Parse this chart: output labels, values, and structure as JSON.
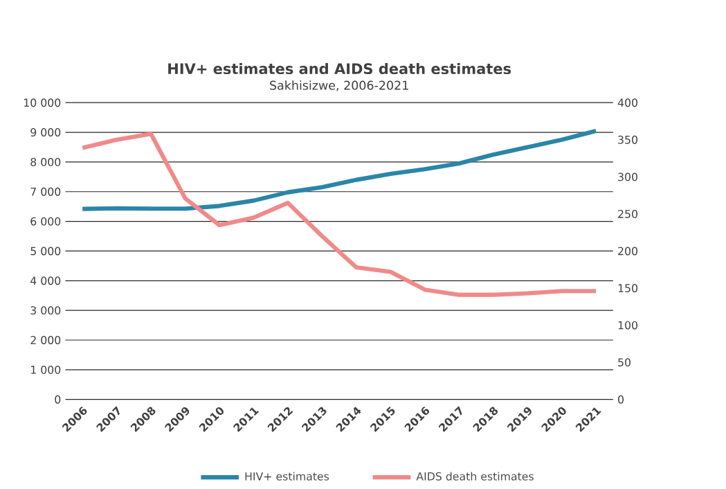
{
  "chart_data": {
    "type": "line",
    "title": "HIV+ estimates and AIDS death estimates",
    "subtitle": "Sakhisizwe, 2006-2021",
    "categories": [
      "2006",
      "2007",
      "2008",
      "2009",
      "2010",
      "2011",
      "2012",
      "2013",
      "2014",
      "2015",
      "2016",
      "2017",
      "2018",
      "2019",
      "2020",
      "2021"
    ],
    "series": [
      {
        "name": "HIV+ estimates",
        "color": "#2a86a8",
        "values": [
          6420,
          6440,
          6430,
          6430,
          6520,
          6700,
          6980,
          7150,
          7400,
          7600,
          7760,
          7950,
          8250,
          8500,
          8750,
          9050
        ]
      },
      {
        "name": "AIDS death estimates",
        "color": "#f08a8a",
        "axis": "y2",
        "values": [
          339,
          350,
          358,
          271,
          235,
          245,
          265,
          220,
          178,
          172,
          148,
          141,
          141,
          143,
          146,
          146
        ]
      }
    ],
    "ylim": [
      0,
      10000
    ],
    "yticks": [
      {
        "value": 0,
        "label": "0"
      },
      {
        "value": 1000,
        "label": "1 000"
      },
      {
        "value": 2000,
        "label": "2 000"
      },
      {
        "value": 3000,
        "label": "3 000"
      },
      {
        "value": 4000,
        "label": "4 000"
      },
      {
        "value": 5000,
        "label": "5 000"
      },
      {
        "value": 6000,
        "label": "6 000"
      },
      {
        "value": 7000,
        "label": "7 000"
      },
      {
        "value": 8000,
        "label": "8 000"
      },
      {
        "value": 9000,
        "label": "9 000"
      },
      {
        "value": 10000,
        "label": "10 000"
      }
    ],
    "y2lim": [
      0,
      400
    ],
    "y2ticks": [
      0,
      50,
      100,
      150,
      200,
      250,
      300,
      350,
      400
    ],
    "grid": "y",
    "legend": "bottom",
    "marker": "none",
    "line_style": "solid"
  }
}
